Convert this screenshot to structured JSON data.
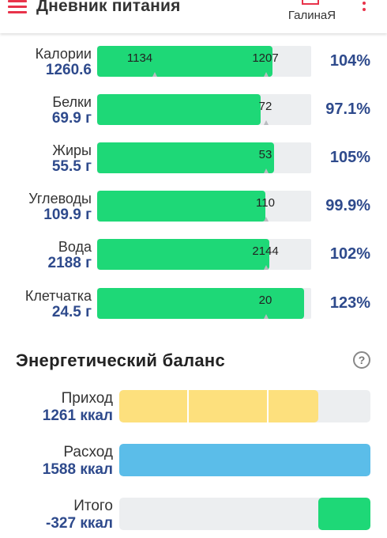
{
  "header": {
    "title": "Дневник питания",
    "user_name": "ГалинаЯ",
    "menu_icon": "hamburger-menu-icon",
    "user_icon": "user-icon",
    "more_icon": "more-vertical-icon",
    "accent_color": "#e8334a"
  },
  "nutrients": [
    {
      "label": "Калории",
      "value": "1260.6",
      "pct": "104%",
      "fill_fraction": 1.04,
      "marker_min": "1134",
      "marker_max": "1207"
    },
    {
      "label": "Белки",
      "value": "69.9 г",
      "pct": "97.1%",
      "fill_fraction": 0.971,
      "marker_min": "",
      "marker_max": "72"
    },
    {
      "label": "Жиры",
      "value": "55.5 г",
      "pct": "105%",
      "fill_fraction": 1.05,
      "marker_min": "",
      "marker_max": "53"
    },
    {
      "label": "Углеводы",
      "value": "109.9 г",
      "pct": "99.9%",
      "fill_fraction": 0.999,
      "marker_min": "",
      "marker_max": "110"
    },
    {
      "label": "Вода",
      "value": "2188 г",
      "pct": "102%",
      "fill_fraction": 1.02,
      "marker_min": "",
      "marker_max": "2144"
    },
    {
      "label": "Клетчатка",
      "value": "24.5 г",
      "pct": "123%",
      "fill_fraction": 1.23,
      "marker_min": "",
      "marker_max": "20"
    }
  ],
  "energy": {
    "title": "Энергетический баланс",
    "help_icon": "question-circle-icon",
    "rows": [
      {
        "label": "Приход",
        "value": "1261 ккал",
        "color": "#fde07d",
        "fill_fraction": 0.794,
        "segmented": true
      },
      {
        "label": "Расход",
        "value": "1588 ккал",
        "color": "#5bbde9",
        "fill_fraction": 1.0,
        "segmented": false
      },
      {
        "label": "Итого",
        "value": "-327 ккал",
        "color": "#1ed877",
        "fill_fraction": 0.206,
        "segmented": false,
        "align": "right"
      }
    ]
  },
  "colors": {
    "fill_green": "#1ed877",
    "track_gray": "#eceef0",
    "value_blue": "#2e4a8c"
  }
}
